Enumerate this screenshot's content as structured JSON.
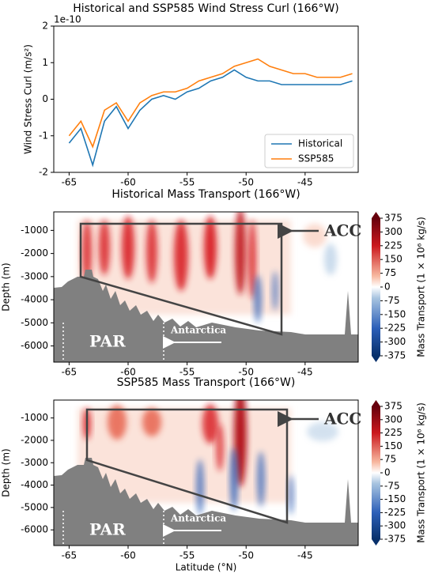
{
  "chart_data": [
    {
      "type": "line",
      "title": "Historical and SSP585 Wind Stress Curl (166°W)",
      "y_label": "Wind Stress Curl (m/s²)",
      "y_offset_label": "1e-10",
      "x": [
        -65,
        -64,
        -63,
        -62,
        -61,
        -60,
        -59,
        -58,
        -57,
        -56,
        -55,
        -54,
        -53,
        -52,
        -51,
        -50,
        -49,
        -48,
        -47,
        -46,
        -45,
        -44,
        -43,
        -42,
        -41
      ],
      "series": [
        {
          "name": "Historical",
          "color": "#1f77b4",
          "values": [
            -1.2,
            -0.8,
            -1.8,
            -0.6,
            -0.2,
            -0.8,
            -0.3,
            0.0,
            0.1,
            0.0,
            0.2,
            0.3,
            0.5,
            0.6,
            0.8,
            0.6,
            0.5,
            0.5,
            0.4,
            0.4,
            0.4,
            0.4,
            0.4,
            0.4,
            0.5
          ]
        },
        {
          "name": "SSP585",
          "color": "#ff7f0e",
          "values": [
            -1.0,
            -0.6,
            -1.3,
            -0.3,
            -0.1,
            -0.6,
            -0.1,
            0.1,
            0.2,
            0.2,
            0.3,
            0.5,
            0.6,
            0.7,
            0.9,
            1.0,
            1.1,
            0.9,
            0.8,
            0.7,
            0.7,
            0.6,
            0.6,
            0.6,
            0.7
          ]
        }
      ],
      "xlim": [
        -66.3,
        -40.5
      ],
      "xticks": [
        -65,
        -60,
        -55,
        -50,
        -45
      ],
      "ylim": [
        -2,
        2
      ],
      "yticks": [
        -2,
        -1,
        0,
        1,
        2
      ],
      "legend": "lower right"
    },
    {
      "type": "contour",
      "title": "Historical Mass Transport (166°W)",
      "y_label": "Depth (m)",
      "xlim": [
        -66.3,
        -40.5
      ],
      "xticks": [
        -65,
        -60,
        -55,
        -50,
        -45
      ],
      "ylim": [
        -6700,
        -200
      ],
      "yticks": [
        -6000,
        -5000,
        -4000,
        -3000,
        -2000,
        -1000
      ],
      "annotations": [
        "ACC",
        "PAR",
        "Antarctica"
      ],
      "colorbar": {
        "label": "Mass Transport (1 × 10⁶ kg/s)",
        "lim": [
          -375,
          375
        ],
        "ticks": [
          -375,
          -300,
          -225,
          -150,
          -75,
          0,
          75,
          150,
          225,
          300,
          375
        ]
      }
    },
    {
      "type": "contour",
      "title": "SSP585 Mass Transport (166°W)",
      "y_label": "Depth (m)",
      "x_label": "Latitude (°N)",
      "xlim": [
        -66.3,
        -40.5
      ],
      "xticks": [
        -65,
        -60,
        -55,
        -50,
        -45
      ],
      "ylim": [
        -6700,
        -200
      ],
      "yticks": [
        -6000,
        -5000,
        -4000,
        -3000,
        -2000,
        -1000
      ],
      "annotations": [
        "ACC",
        "PAR",
        "Antarctica"
      ],
      "colorbar": {
        "label": "Mass Transport (1 × 10⁶ kg/s)",
        "lim": [
          -375,
          375
        ],
        "ticks": [
          -375,
          -300,
          -225,
          -150,
          -75,
          0,
          75,
          150,
          225,
          300,
          375
        ]
      }
    }
  ]
}
